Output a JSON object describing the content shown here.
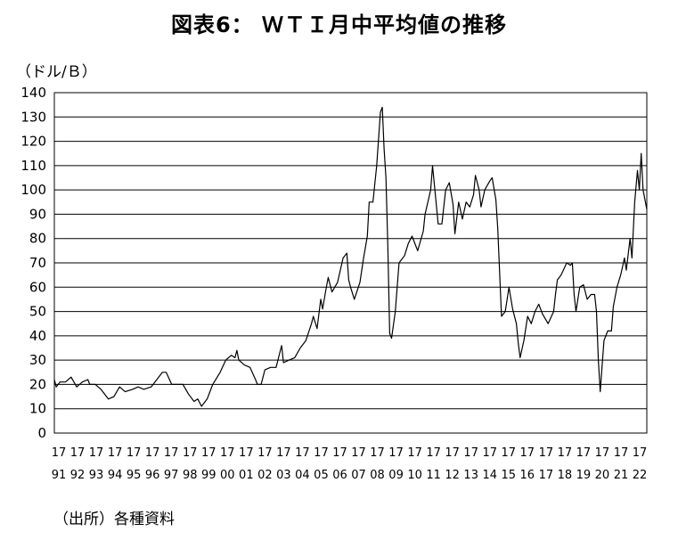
{
  "chart_data": {
    "type": "line",
    "title": "図表6： ＷＴＩ月中平均値の推移",
    "unit_label": "（ドル/Ｂ）",
    "source_note": "（出所）各種資料",
    "ylim": [
      0,
      140
    ],
    "yticks": [
      0,
      10,
      20,
      30,
      40,
      50,
      60,
      70,
      80,
      90,
      100,
      110,
      120,
      130,
      140
    ],
    "grid": true,
    "legend": "none",
    "line_color": "#000000",
    "xticks": [
      [
        "17",
        "91"
      ],
      [
        "17",
        "92"
      ],
      [
        "17",
        "93"
      ],
      [
        "17",
        "94"
      ],
      [
        "17",
        "95"
      ],
      [
        "17",
        "96"
      ],
      [
        "17",
        "97"
      ],
      [
        "17",
        "98"
      ],
      [
        "17",
        "99"
      ],
      [
        "17",
        "00"
      ],
      [
        "17",
        "01"
      ],
      [
        "17",
        "02"
      ],
      [
        "17",
        "03"
      ],
      [
        "17",
        "04"
      ],
      [
        "17",
        "05"
      ],
      [
        "17",
        "06"
      ],
      [
        "17",
        "07"
      ],
      [
        "17",
        "08"
      ],
      [
        "17",
        "09"
      ],
      [
        "17",
        "10"
      ],
      [
        "17",
        "11"
      ],
      [
        "17",
        "12"
      ],
      [
        "17",
        "13"
      ],
      [
        "17",
        "14"
      ],
      [
        "17",
        "15"
      ],
      [
        "17",
        "16"
      ],
      [
        "17",
        "17"
      ],
      [
        "17",
        "18"
      ],
      [
        "17",
        "19"
      ],
      [
        "17",
        "20"
      ],
      [
        "17",
        "21"
      ],
      [
        "17",
        "22"
      ]
    ],
    "series": [
      {
        "points": [
          [
            1991.0,
            22
          ],
          [
            1991.1,
            19
          ],
          [
            1991.3,
            21
          ],
          [
            1991.6,
            21
          ],
          [
            1991.9,
            23
          ],
          [
            1992.2,
            19
          ],
          [
            1992.5,
            21
          ],
          [
            1992.8,
            22
          ],
          [
            1992.9,
            20
          ],
          [
            1993.2,
            20
          ],
          [
            1993.5,
            18
          ],
          [
            1993.9,
            14
          ],
          [
            1994.2,
            15
          ],
          [
            1994.5,
            19
          ],
          [
            1994.8,
            17
          ],
          [
            1995.2,
            18
          ],
          [
            1995.5,
            19
          ],
          [
            1995.8,
            18
          ],
          [
            1996.2,
            19
          ],
          [
            1996.5,
            22
          ],
          [
            1996.8,
            25
          ],
          [
            1997.0,
            25
          ],
          [
            1997.3,
            20
          ],
          [
            1997.6,
            20
          ],
          [
            1997.9,
            20
          ],
          [
            1998.2,
            16
          ],
          [
            1998.5,
            13
          ],
          [
            1998.7,
            14
          ],
          [
            1998.9,
            11
          ],
          [
            1999.2,
            14
          ],
          [
            1999.5,
            20
          ],
          [
            1999.9,
            25
          ],
          [
            2000.2,
            30
          ],
          [
            2000.5,
            32
          ],
          [
            2000.7,
            31
          ],
          [
            2000.8,
            34
          ],
          [
            2000.9,
            30
          ],
          [
            2001.2,
            28
          ],
          [
            2001.5,
            27
          ],
          [
            2001.8,
            22
          ],
          [
            2001.9,
            20
          ],
          [
            2002.1,
            20
          ],
          [
            2002.3,
            26
          ],
          [
            2002.6,
            27
          ],
          [
            2002.9,
            27
          ],
          [
            2003.1,
            33
          ],
          [
            2003.2,
            36
          ],
          [
            2003.3,
            29
          ],
          [
            2003.6,
            30
          ],
          [
            2003.9,
            31
          ],
          [
            2004.2,
            35
          ],
          [
            2004.5,
            38
          ],
          [
            2004.8,
            45
          ],
          [
            2004.9,
            48
          ],
          [
            2005.1,
            43
          ],
          [
            2005.3,
            55
          ],
          [
            2005.4,
            51
          ],
          [
            2005.6,
            60
          ],
          [
            2005.7,
            64
          ],
          [
            2005.9,
            58
          ],
          [
            2006.2,
            62
          ],
          [
            2006.5,
            72
          ],
          [
            2006.7,
            74
          ],
          [
            2006.8,
            63
          ],
          [
            2006.9,
            60
          ],
          [
            2007.1,
            55
          ],
          [
            2007.4,
            62
          ],
          [
            2007.6,
            72
          ],
          [
            2007.8,
            81
          ],
          [
            2007.9,
            95
          ],
          [
            2008.1,
            95
          ],
          [
            2008.3,
            110
          ],
          [
            2008.5,
            132
          ],
          [
            2008.6,
            134
          ],
          [
            2008.7,
            117
          ],
          [
            2008.8,
            105
          ],
          [
            2008.9,
            77
          ],
          [
            2009.0,
            41
          ],
          [
            2009.1,
            39
          ],
          [
            2009.3,
            50
          ],
          [
            2009.5,
            70
          ],
          [
            2009.8,
            73
          ],
          [
            2010.0,
            78
          ],
          [
            2010.2,
            81
          ],
          [
            2010.5,
            75
          ],
          [
            2010.8,
            83
          ],
          [
            2010.9,
            90
          ],
          [
            2011.2,
            100
          ],
          [
            2011.3,
            110
          ],
          [
            2011.4,
            102
          ],
          [
            2011.6,
            86
          ],
          [
            2011.8,
            86
          ],
          [
            2012.0,
            100
          ],
          [
            2012.2,
            103
          ],
          [
            2012.4,
            94
          ],
          [
            2012.5,
            82
          ],
          [
            2012.7,
            95
          ],
          [
            2012.9,
            88
          ],
          [
            2013.1,
            95
          ],
          [
            2013.3,
            93
          ],
          [
            2013.5,
            98
          ],
          [
            2013.6,
            106
          ],
          [
            2013.8,
            100
          ],
          [
            2013.9,
            93
          ],
          [
            2014.1,
            100
          ],
          [
            2014.4,
            104
          ],
          [
            2014.5,
            105
          ],
          [
            2014.7,
            96
          ],
          [
            2014.8,
            84
          ],
          [
            2014.9,
            66
          ],
          [
            2015.0,
            48
          ],
          [
            2015.2,
            50
          ],
          [
            2015.4,
            60
          ],
          [
            2015.6,
            51
          ],
          [
            2015.8,
            45
          ],
          [
            2015.9,
            37
          ],
          [
            2016.0,
            31
          ],
          [
            2016.2,
            38
          ],
          [
            2016.4,
            48
          ],
          [
            2016.6,
            45
          ],
          [
            2016.8,
            50
          ],
          [
            2017.0,
            53
          ],
          [
            2017.2,
            49
          ],
          [
            2017.5,
            45
          ],
          [
            2017.8,
            50
          ],
          [
            2017.9,
            57
          ],
          [
            2018.0,
            63
          ],
          [
            2018.2,
            65
          ],
          [
            2018.5,
            70
          ],
          [
            2018.7,
            69
          ],
          [
            2018.8,
            70
          ],
          [
            2018.9,
            57
          ],
          [
            2019.0,
            50
          ],
          [
            2019.2,
            60
          ],
          [
            2019.4,
            61
          ],
          [
            2019.6,
            55
          ],
          [
            2019.8,
            57
          ],
          [
            2020.0,
            57
          ],
          [
            2020.1,
            50
          ],
          [
            2020.2,
            30
          ],
          [
            2020.3,
            17
          ],
          [
            2020.5,
            38
          ],
          [
            2020.7,
            42
          ],
          [
            2020.9,
            42
          ],
          [
            2021.0,
            52
          ],
          [
            2021.2,
            60
          ],
          [
            2021.4,
            65
          ],
          [
            2021.6,
            72
          ],
          [
            2021.7,
            67
          ],
          [
            2021.9,
            80
          ],
          [
            2022.0,
            72
          ],
          [
            2022.15,
            95
          ],
          [
            2022.3,
            108
          ],
          [
            2022.4,
            100
          ],
          [
            2022.5,
            115
          ],
          [
            2022.6,
            100
          ],
          [
            2022.8,
            92
          ]
        ]
      }
    ]
  }
}
